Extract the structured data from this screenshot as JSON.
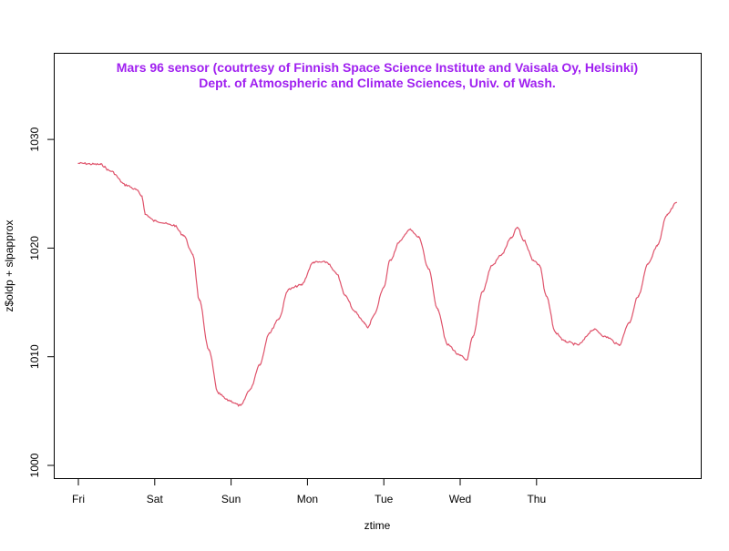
{
  "chart_data": {
    "type": "line",
    "title": "Mars 96 sensor (coutrtesy of Finnish Space Science Institute and Vaisala Oy, Helsinki)",
    "subtitle": "Dept. of Atmospheric and Climate Sciences, Univ. of Wash.",
    "title_color": "#A020F0",
    "line_color": "#DF536B",
    "xlabel": "ztime",
    "ylabel": "z$oldp + slpapprox",
    "ylim": [
      998.8,
      1038
    ],
    "yticks": [
      1000,
      1010,
      1020,
      1030
    ],
    "xticks": [
      "Fri",
      "Sat",
      "Sun",
      "Mon",
      "Tue",
      "Wed",
      "Thu"
    ],
    "grid": false,
    "series": [
      {
        "x": [
          "Fri 00:00",
          "Fri 07:00",
          "Fri 10:00",
          "Fri 15:00",
          "Fri 18:00",
          "Fri 20:00",
          "Fri 21:00",
          "Sat 00:00",
          "Sat 06:00",
          "Sat 09:00",
          "Sat 12:00",
          "Sat 14:00",
          "Sat 17:00",
          "Sat 20:00",
          "Sat 23:00",
          "Sun 03:00",
          "Sun 06:00",
          "Sun 09:00",
          "Sun 12:00",
          "Sun 15:00",
          "Sun 18:00",
          "Sun 22:00",
          "Mon 02:00",
          "Mon 06:00",
          "Mon 09:00",
          "Mon 12:00",
          "Mon 15:00",
          "Mon 18:00",
          "Mon 19:00",
          "Mon 21:00",
          "Tue 00:00",
          "Tue 02:00",
          "Tue 05:00",
          "Tue 08:00",
          "Tue 11:00",
          "Tue 14:00",
          "Tue 17:00",
          "Tue 20:00",
          "Wed 00:00",
          "Wed 02:00",
          "Wed 04:00",
          "Wed 07:00",
          "Wed 10:00",
          "Wed 13:00",
          "Wed 16:00",
          "Wed 18:00",
          "Wed 20:00",
          "Wed 23:00",
          "Thu 01:00",
          "Thu 03:00",
          "Thu 06:00",
          "Thu 09:00",
          "Thu 13:00",
          "Thu 18:00",
          "Thu 22:00",
          "Fri 02:00",
          "Fri 05:00",
          "Fri 08:00",
          "Fri 11:00",
          "Fri 14:00",
          "Fri 17:00",
          "Fri 20:00"
        ],
        "y": [
          1027.8,
          1027.7,
          1027.1,
          1025.8,
          1025.4,
          1024.8,
          1023.1,
          1022.5,
          1022.1,
          1021.2,
          1019.4,
          1015.2,
          1010.6,
          1006.6,
          1006.0,
          1005.5,
          1007.0,
          1009.3,
          1012.2,
          1013.5,
          1016.2,
          1016.6,
          1018.7,
          1018.7,
          1017.7,
          1015.6,
          1014.1,
          1013.1,
          1012.7,
          1013.9,
          1016.4,
          1018.9,
          1020.6,
          1021.7,
          1021.0,
          1018.1,
          1014.3,
          1011.1,
          1010.1,
          1009.7,
          1011.8,
          1016.0,
          1018.4,
          1019.4,
          1020.9,
          1021.9,
          1020.7,
          1018.9,
          1018.4,
          1015.6,
          1012.2,
          1011.4,
          1011.1,
          1012.5,
          1011.8,
          1011.1,
          1013.1,
          1015.6,
          1018.5,
          1020.2,
          1023.1,
          1024.2
        ]
      }
    ]
  }
}
